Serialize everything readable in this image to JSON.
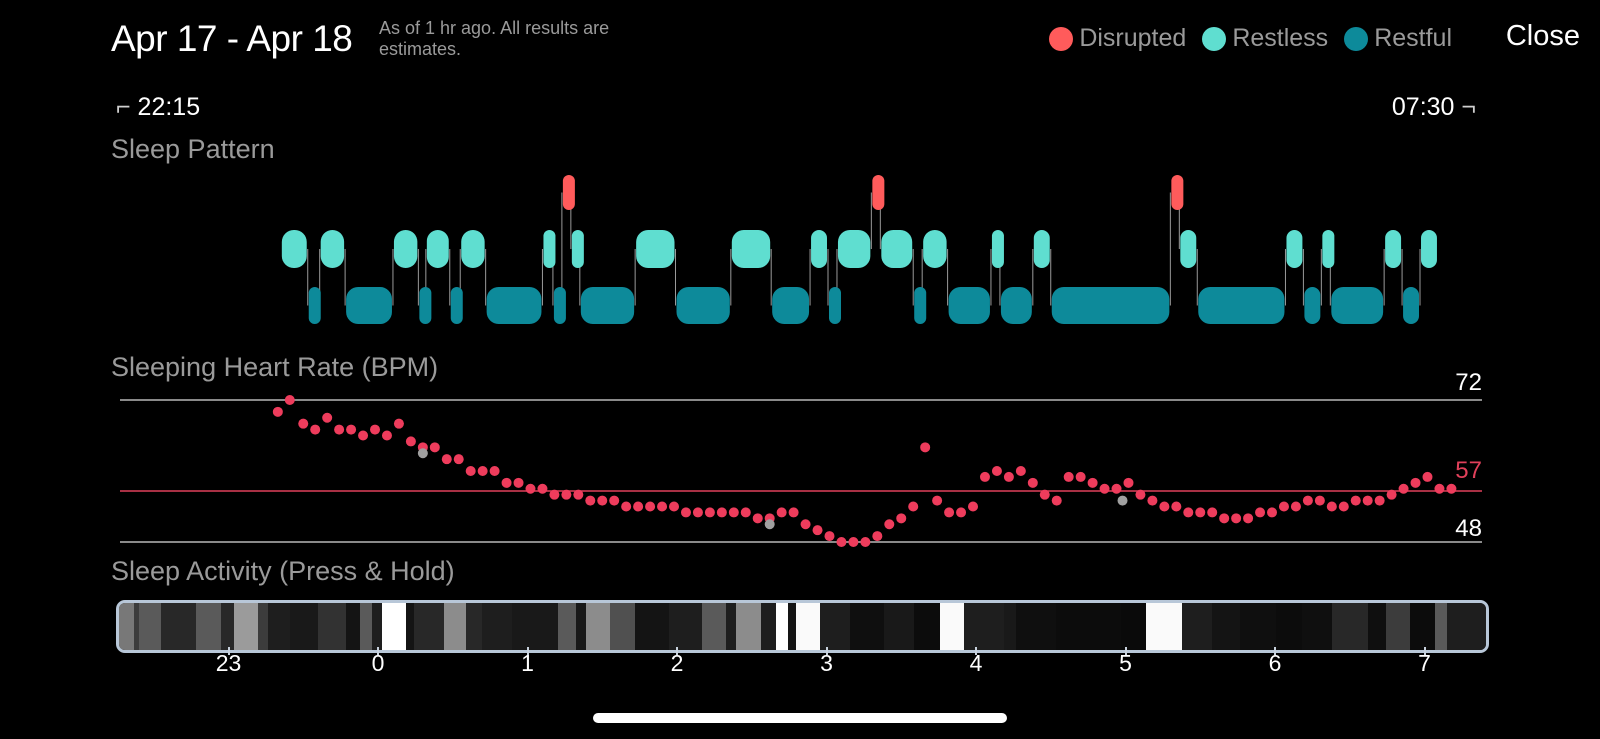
{
  "header": {
    "title": "Apr 17 - Apr 18",
    "note": "As of 1 hr ago. All results are estimates.",
    "close_label": "Close"
  },
  "legend": [
    {
      "label": "Disrupted",
      "color": "#ff5b5b"
    },
    {
      "label": "Restless",
      "color": "#5fded0"
    },
    {
      "label": "Restful",
      "color": "#0d8a9a"
    }
  ],
  "times": {
    "start": "22:15",
    "end": "07:30"
  },
  "sections": {
    "pattern": "Sleep Pattern",
    "heart_rate": "Sleeping Heart Rate (BPM)",
    "activity": "Sleep Activity (Press & Hold)"
  },
  "sleep_pattern": {
    "segments": [
      {
        "s": "restless",
        "a": -0.65,
        "b": -0.47
      },
      {
        "s": "restful",
        "a": -0.47,
        "b": -0.39
      },
      {
        "s": "restless",
        "a": -0.39,
        "b": -0.22
      },
      {
        "s": "restful",
        "a": -0.22,
        "b": 0.1
      },
      {
        "s": "restless",
        "a": 0.1,
        "b": 0.27
      },
      {
        "s": "restful",
        "a": 0.27,
        "b": 0.32
      },
      {
        "s": "restless",
        "a": 0.32,
        "b": 0.48
      },
      {
        "s": "restful",
        "a": 0.48,
        "b": 0.55
      },
      {
        "s": "restless",
        "a": 0.55,
        "b": 0.72
      },
      {
        "s": "restful",
        "a": 0.72,
        "b": 1.1
      },
      {
        "s": "restless",
        "a": 1.1,
        "b": 1.17
      },
      {
        "s": "restful",
        "a": 1.17,
        "b": 1.23
      },
      {
        "s": "disrupted",
        "a": 1.23,
        "b": 1.29
      },
      {
        "s": "restless",
        "a": 1.29,
        "b": 1.35
      },
      {
        "s": "restful",
        "a": 1.35,
        "b": 1.72
      },
      {
        "s": "restless",
        "a": 1.72,
        "b": 1.99
      },
      {
        "s": "restful",
        "a": 1.99,
        "b": 2.36
      },
      {
        "s": "restless",
        "a": 2.36,
        "b": 2.63
      },
      {
        "s": "restful",
        "a": 2.63,
        "b": 2.89
      },
      {
        "s": "restless",
        "a": 2.89,
        "b": 3.01
      },
      {
        "s": "restful",
        "a": 3.01,
        "b": 3.07
      },
      {
        "s": "restless",
        "a": 3.07,
        "b": 3.3
      },
      {
        "s": "disrupted",
        "a": 3.3,
        "b": 3.36
      },
      {
        "s": "restless",
        "a": 3.36,
        "b": 3.58
      },
      {
        "s": "restful",
        "a": 3.58,
        "b": 3.64
      },
      {
        "s": "restless",
        "a": 3.64,
        "b": 3.81
      },
      {
        "s": "restful",
        "a": 3.81,
        "b": 4.1
      },
      {
        "s": "restless",
        "a": 4.1,
        "b": 4.16
      },
      {
        "s": "restful",
        "a": 4.16,
        "b": 4.38
      },
      {
        "s": "restless",
        "a": 4.38,
        "b": 4.5
      },
      {
        "s": "restful",
        "a": 4.5,
        "b": 5.3
      },
      {
        "s": "disrupted",
        "a": 5.3,
        "b": 5.36
      },
      {
        "s": "restless",
        "a": 5.36,
        "b": 5.48
      },
      {
        "s": "restful",
        "a": 5.48,
        "b": 6.07
      },
      {
        "s": "restless",
        "a": 6.07,
        "b": 6.19
      },
      {
        "s": "restful",
        "a": 6.19,
        "b": 6.31
      },
      {
        "s": "restless",
        "a": 6.31,
        "b": 6.37
      },
      {
        "s": "restful",
        "a": 6.37,
        "b": 6.73
      },
      {
        "s": "restless",
        "a": 6.73,
        "b": 6.85
      },
      {
        "s": "restful",
        "a": 6.85,
        "b": 6.97
      },
      {
        "s": "restless",
        "a": 6.97,
        "b": 7.09
      }
    ]
  },
  "heart_rate": {
    "max_label": "72",
    "avg_label": "57",
    "min_label": "48",
    "max": 72,
    "avg": 57,
    "min": 48,
    "points": [
      [
        -0.67,
        70
      ],
      [
        -0.59,
        72
      ],
      [
        -0.5,
        68
      ],
      [
        -0.42,
        67
      ],
      [
        -0.34,
        69
      ],
      [
        -0.26,
        67
      ],
      [
        -0.18,
        67
      ],
      [
        -0.1,
        66
      ],
      [
        -0.02,
        67
      ],
      [
        0.06,
        66
      ],
      [
        0.14,
        68
      ],
      [
        0.22,
        65
      ],
      [
        0.3,
        64
      ],
      [
        0.38,
        64
      ],
      [
        0.46,
        62
      ],
      [
        0.54,
        62
      ],
      [
        0.62,
        60
      ],
      [
        0.7,
        60
      ],
      [
        0.78,
        60
      ],
      [
        0.86,
        58
      ],
      [
        0.94,
        58
      ],
      [
        1.02,
        57
      ],
      [
        1.1,
        57
      ],
      [
        1.18,
        56
      ],
      [
        1.26,
        56
      ],
      [
        1.34,
        56
      ],
      [
        1.42,
        55
      ],
      [
        1.5,
        55
      ],
      [
        1.58,
        55
      ],
      [
        1.66,
        54
      ],
      [
        1.74,
        54
      ],
      [
        1.82,
        54
      ],
      [
        1.9,
        54
      ],
      [
        1.98,
        54
      ],
      [
        2.06,
        53
      ],
      [
        2.14,
        53
      ],
      [
        2.22,
        53
      ],
      [
        2.3,
        53
      ],
      [
        2.38,
        53
      ],
      [
        2.46,
        53
      ],
      [
        2.54,
        52
      ],
      [
        2.62,
        52
      ],
      [
        2.7,
        53
      ],
      [
        2.78,
        53
      ],
      [
        2.86,
        51
      ],
      [
        2.94,
        50
      ],
      [
        3.02,
        49
      ],
      [
        3.1,
        48
      ],
      [
        3.18,
        48
      ],
      [
        3.26,
        48
      ],
      [
        3.34,
        49
      ],
      [
        3.42,
        51
      ],
      [
        3.5,
        52
      ],
      [
        3.58,
        54
      ],
      [
        3.66,
        64
      ],
      [
        3.74,
        55
      ],
      [
        3.82,
        53
      ],
      [
        3.9,
        53
      ],
      [
        3.98,
        54
      ],
      [
        4.06,
        59
      ],
      [
        4.14,
        60
      ],
      [
        4.22,
        59
      ],
      [
        4.3,
        60
      ],
      [
        4.38,
        58
      ],
      [
        4.46,
        56
      ],
      [
        4.54,
        55
      ],
      [
        4.62,
        59
      ],
      [
        4.7,
        59
      ],
      [
        4.78,
        58
      ],
      [
        4.86,
        57
      ],
      [
        4.94,
        57
      ],
      [
        5.02,
        58
      ],
      [
        5.1,
        56
      ],
      [
        5.18,
        55
      ],
      [
        5.26,
        54
      ],
      [
        5.34,
        54
      ],
      [
        5.42,
        53
      ],
      [
        5.5,
        53
      ],
      [
        5.58,
        53
      ],
      [
        5.66,
        52
      ],
      [
        5.74,
        52
      ],
      [
        5.82,
        52
      ],
      [
        5.9,
        53
      ],
      [
        5.98,
        53
      ],
      [
        6.06,
        54
      ],
      [
        6.14,
        54
      ],
      [
        6.22,
        55
      ],
      [
        6.3,
        55
      ],
      [
        6.38,
        54
      ],
      [
        6.46,
        54
      ],
      [
        6.54,
        55
      ],
      [
        6.62,
        55
      ],
      [
        6.7,
        55
      ],
      [
        6.78,
        56
      ],
      [
        6.86,
        57
      ],
      [
        6.94,
        58
      ],
      [
        7.02,
        59
      ],
      [
        7.1,
        57
      ],
      [
        7.18,
        57
      ]
    ],
    "gray_points": [
      [
        0.3,
        63
      ],
      [
        2.62,
        51
      ],
      [
        4.98,
        55
      ]
    ]
  },
  "activity": {
    "blocks": [
      {
        "w": 15,
        "v": 120
      },
      {
        "w": 5,
        "v": 60
      },
      {
        "w": 22,
        "v": 90
      },
      {
        "w": 35,
        "v": 40
      },
      {
        "w": 25,
        "v": 90
      },
      {
        "w": 13,
        "v": 40
      },
      {
        "w": 24,
        "v": 155
      },
      {
        "w": 10,
        "v": 60
      },
      {
        "w": 22,
        "v": 30
      },
      {
        "w": 28,
        "v": 25
      },
      {
        "w": 28,
        "v": 50
      },
      {
        "w": 14,
        "v": 20
      },
      {
        "w": 12,
        "v": 90
      },
      {
        "w": 10,
        "v": 30
      },
      {
        "w": 24,
        "v": 255
      },
      {
        "w": 8,
        "v": 20
      },
      {
        "w": 30,
        "v": 40
      },
      {
        "w": 22,
        "v": 140
      },
      {
        "w": 16,
        "v": 40
      },
      {
        "w": 30,
        "v": 30
      },
      {
        "w": 26,
        "v": 25
      },
      {
        "w": 20,
        "v": 25
      },
      {
        "w": 18,
        "v": 90
      },
      {
        "w": 10,
        "v": 25
      },
      {
        "w": 24,
        "v": 140
      },
      {
        "w": 25,
        "v": 80
      },
      {
        "w": 34,
        "v": 20
      },
      {
        "w": 33,
        "v": 30
      },
      {
        "w": 24,
        "v": 90
      },
      {
        "w": 10,
        "v": 30
      },
      {
        "w": 25,
        "v": 140
      },
      {
        "w": 15,
        "v": 30
      },
      {
        "w": 12,
        "v": 255
      },
      {
        "w": 8,
        "v": 20
      },
      {
        "w": 24,
        "v": 250
      },
      {
        "w": 30,
        "v": 30
      },
      {
        "w": 34,
        "v": 15
      },
      {
        "w": 30,
        "v": 25
      },
      {
        "w": 26,
        "v": 12
      },
      {
        "w": 24,
        "v": 250
      },
      {
        "w": 40,
        "v": 30
      },
      {
        "w": 12,
        "v": 25
      },
      {
        "w": 40,
        "v": 15
      },
      {
        "w": 25,
        "v": 12
      },
      {
        "w": 40,
        "v": 12
      },
      {
        "w": 25,
        "v": 10
      },
      {
        "w": 36,
        "v": 250
      },
      {
        "w": 30,
        "v": 30
      },
      {
        "w": 28,
        "v": 20
      },
      {
        "w": 36,
        "v": 15
      },
      {
        "w": 26,
        "v": 12
      },
      {
        "w": 30,
        "v": 15
      },
      {
        "w": 36,
        "v": 40
      },
      {
        "w": 18,
        "v": 15
      },
      {
        "w": 24,
        "v": 60
      },
      {
        "w": 25,
        "v": 12
      },
      {
        "w": 12,
        "v": 90
      },
      {
        "w": 40,
        "v": 30
      },
      {
        "w": 30,
        "v": 15
      },
      {
        "w": 24,
        "v": 240
      },
      {
        "w": 30,
        "v": 30
      },
      {
        "w": 13,
        "v": 90
      }
    ]
  },
  "axis": {
    "ticks": [
      {
        "h": -1,
        "label": "23"
      },
      {
        "h": 0,
        "label": "0"
      },
      {
        "h": 1,
        "label": "1"
      },
      {
        "h": 2,
        "label": "2"
      },
      {
        "h": 3,
        "label": "3"
      },
      {
        "h": 4,
        "label": "4"
      },
      {
        "h": 5,
        "label": "5"
      },
      {
        "h": 6,
        "label": "6"
      },
      {
        "h": 7,
        "label": "7"
      }
    ]
  }
}
